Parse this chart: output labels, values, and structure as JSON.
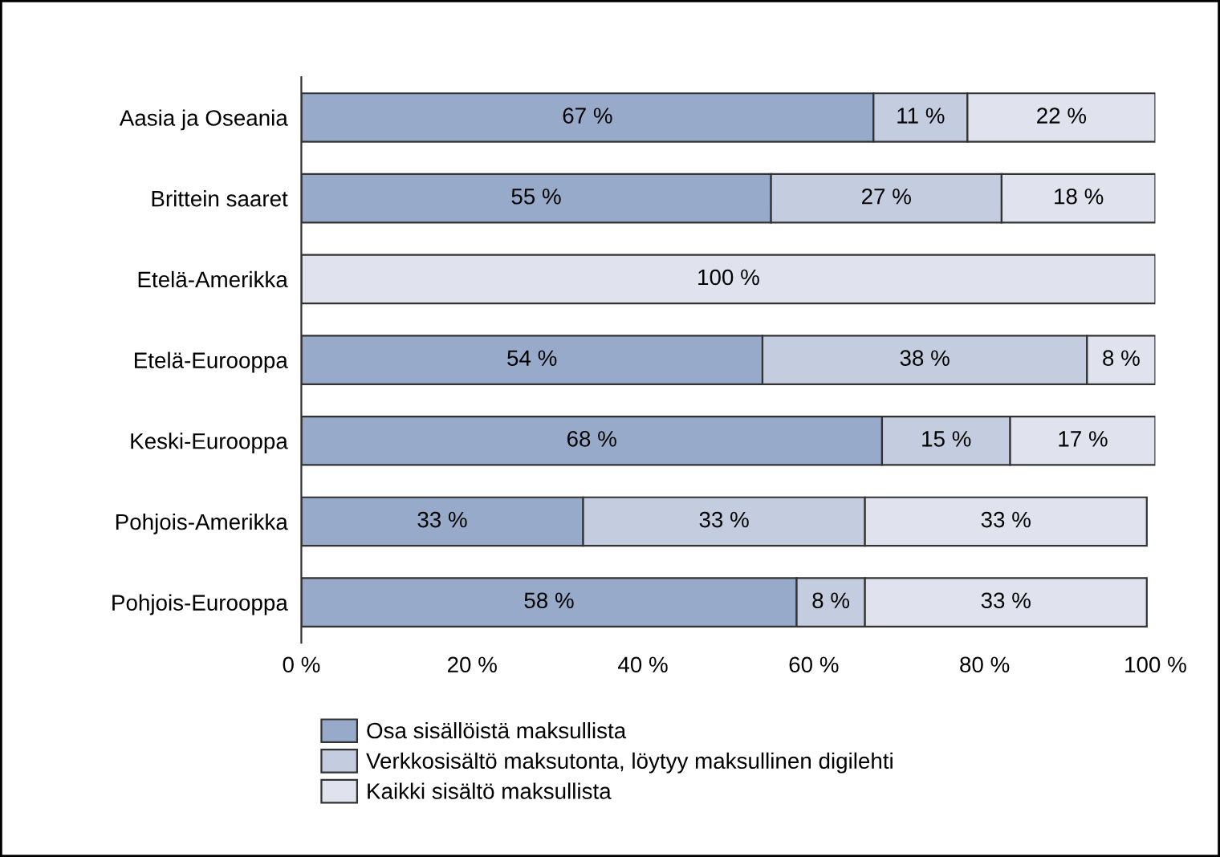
{
  "chart_data": {
    "type": "bar",
    "orientation": "horizontal",
    "stacked": true,
    "categories": [
      "Aasia ja Oseania",
      "Brittein saaret",
      "Etelä-Amerikka",
      "Etelä-Eurooppa",
      "Keski-Eurooppa",
      "Pohjois-Amerikka",
      "Pohjois-Eurooppa"
    ],
    "series": [
      {
        "name": "Osa sisällöistä maksullista",
        "color": "#97aac9",
        "values": [
          67,
          55,
          0,
          54,
          68,
          33,
          58
        ],
        "value_labels": [
          "67 %",
          "55 %",
          null,
          "54 %",
          "68 %",
          "33 %",
          "58 %"
        ]
      },
      {
        "name": "Verkkosisältö maksutonta, löytyy maksullinen digilehti",
        "color": "#c4cddf",
        "values": [
          11,
          27,
          0,
          38,
          15,
          33,
          8
        ],
        "value_labels": [
          "11 %",
          "27 %",
          null,
          "38 %",
          "15 %",
          "33 %",
          "8 %"
        ]
      },
      {
        "name": "Kaikki sisältö maksullista",
        "color": "#e0e3ee",
        "values": [
          22,
          18,
          100,
          8,
          17,
          33,
          33
        ],
        "value_labels": [
          "22 %",
          "18 %",
          "100 %",
          "8 %",
          "17 %",
          "33 %",
          "33 %"
        ]
      }
    ],
    "xlim": [
      0,
      100
    ],
    "xticks": [
      {
        "value": 0,
        "label": "0 %"
      },
      {
        "value": 20,
        "label": "20 %"
      },
      {
        "value": 40,
        "label": "40 %"
      },
      {
        "value": 60,
        "label": "60 %"
      },
      {
        "value": 80,
        "label": "80 %"
      },
      {
        "value": 100,
        "label": "100 %"
      }
    ],
    "grid": false,
    "legend": "bottom"
  }
}
